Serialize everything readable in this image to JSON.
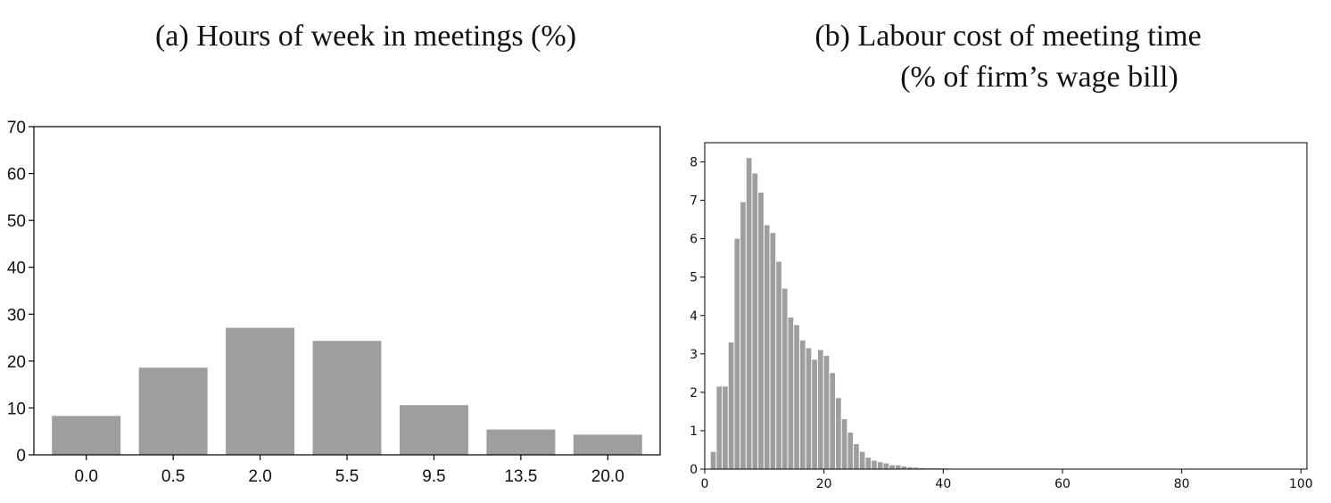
{
  "chart_data": [
    {
      "id": "a",
      "type": "bar",
      "title": "(a) Hours of week in meetings (%)",
      "categories": [
        "0.0",
        "0.5",
        "2.0",
        "5.5",
        "9.5",
        "13.5",
        "20.0"
      ],
      "values": [
        8.3,
        18.6,
        27.1,
        24.3,
        10.6,
        5.4,
        4.3
      ],
      "ylim": [
        0,
        70
      ],
      "yticks": [
        0,
        10,
        20,
        30,
        40,
        50,
        60,
        70
      ],
      "xlabel": "",
      "ylabel": "",
      "grid": false,
      "bar_color": "#9e9e9e"
    },
    {
      "id": "b",
      "type": "bar",
      "title_line1": "(b) Labour cost of meeting time",
      "title_line2": "(% of firm’s wage bill)",
      "bin_width": 1,
      "x": [
        1,
        2,
        3,
        4,
        5,
        6,
        7,
        8,
        9,
        10,
        11,
        12,
        13,
        14,
        15,
        16,
        17,
        18,
        19,
        20,
        21,
        22,
        23,
        24,
        25,
        26,
        27,
        28,
        29,
        30,
        31,
        32,
        33,
        34,
        35,
        36,
        37,
        38,
        39,
        40,
        41,
        42,
        43,
        44,
        45,
        46,
        47,
        48
      ],
      "values": [
        0.45,
        2.15,
        2.15,
        3.3,
        6.0,
        6.95,
        8.1,
        7.7,
        7.2,
        6.35,
        6.15,
        5.4,
        4.7,
        3.95,
        3.75,
        3.35,
        3.15,
        2.85,
        3.1,
        2.95,
        2.5,
        1.85,
        1.3,
        0.95,
        0.65,
        0.45,
        0.3,
        0.22,
        0.18,
        0.15,
        0.1,
        0.1,
        0.07,
        0.05,
        0.04,
        0.03,
        0.02,
        0.02,
        0.02,
        0.02,
        0.01,
        0.01,
        0.01,
        0.01,
        0.01,
        0.01,
        0.01,
        0.01
      ],
      "xlim": [
        0,
        101
      ],
      "ylim": [
        0,
        8.5
      ],
      "xticks": [
        0,
        20,
        40,
        60,
        80,
        100
      ],
      "yticks": [
        0,
        1,
        2,
        3,
        4,
        5,
        6,
        7,
        8
      ],
      "xlabel": "",
      "ylabel": "",
      "grid": false,
      "bar_color": "#9e9e9e"
    }
  ]
}
